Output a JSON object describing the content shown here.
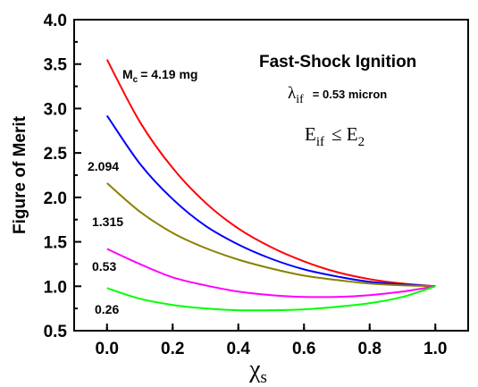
{
  "chart_data": {
    "type": "line",
    "xlabel": "χ",
    "xlabel_sub": "s",
    "ylabel": "Figure of Merit",
    "xlim": [
      -0.1,
      1.1
    ],
    "ylim": [
      0.5,
      4.0
    ],
    "xticks": [
      0.0,
      0.2,
      0.4,
      0.6,
      0.8,
      1.0
    ],
    "xtick_labels": [
      "0.0",
      "0.2",
      "0.4",
      "0.6",
      "0.8",
      "1.0"
    ],
    "yticks": [
      0.5,
      1.0,
      1.5,
      2.0,
      2.5,
      3.0,
      3.5,
      4.0
    ],
    "ytick_labels": [
      "0.5",
      "1.0",
      "1.5",
      "2.0",
      "2.5",
      "3.0",
      "3.5",
      "4.0"
    ],
    "grid": false,
    "annotations": {
      "title": "Fast-Shock  Ignition",
      "lambda_symbol": "λ",
      "lambda_sub": "if",
      "lambda_value": "= 0.53 micron",
      "e_lhs": "E",
      "e_lhs_sub": "if",
      "e_rel": "≤ E",
      "e_rhs_sub": "2",
      "mass_prefix": "M",
      "mass_sub": "c",
      "mass_value": "= 4.19 mg"
    },
    "series": [
      {
        "label": "M_c = 4.19 mg",
        "color": "#ff0000",
        "x": [
          0.0,
          0.1,
          0.2,
          0.3,
          0.4,
          0.5,
          0.6,
          0.7,
          0.8,
          0.9,
          1.0
        ],
        "y": [
          3.55,
          2.85,
          2.33,
          1.94,
          1.65,
          1.44,
          1.28,
          1.16,
          1.08,
          1.03,
          1.0
        ]
      },
      {
        "label": "2.094",
        "color": "#0000ff",
        "x": [
          0.0,
          0.1,
          0.2,
          0.3,
          0.4,
          0.5,
          0.6,
          0.7,
          0.8,
          0.9,
          1.0
        ],
        "y": [
          2.92,
          2.38,
          1.98,
          1.68,
          1.47,
          1.31,
          1.19,
          1.11,
          1.05,
          1.02,
          1.0
        ]
      },
      {
        "label": "1.315",
        "color": "#8b8000",
        "x": [
          0.0,
          0.1,
          0.2,
          0.3,
          0.4,
          0.5,
          0.6,
          0.7,
          0.8,
          0.9,
          1.0
        ],
        "y": [
          2.16,
          1.84,
          1.6,
          1.43,
          1.3,
          1.2,
          1.12,
          1.07,
          1.03,
          1.01,
          1.0
        ]
      },
      {
        "label": "0.53",
        "color": "#ff00ff",
        "x": [
          0.0,
          0.1,
          0.2,
          0.3,
          0.4,
          0.5,
          0.6,
          0.7,
          0.8,
          0.9,
          1.0
        ],
        "y": [
          1.42,
          1.25,
          1.1,
          1.01,
          0.94,
          0.9,
          0.88,
          0.88,
          0.9,
          0.94,
          1.0
        ]
      },
      {
        "label": "0.26",
        "color": "#00ff00",
        "x": [
          0.0,
          0.1,
          0.2,
          0.3,
          0.4,
          0.5,
          0.6,
          0.7,
          0.8,
          0.9,
          1.0
        ],
        "y": [
          0.98,
          0.86,
          0.79,
          0.75,
          0.73,
          0.73,
          0.74,
          0.77,
          0.81,
          0.88,
          1.0
        ]
      }
    ]
  }
}
